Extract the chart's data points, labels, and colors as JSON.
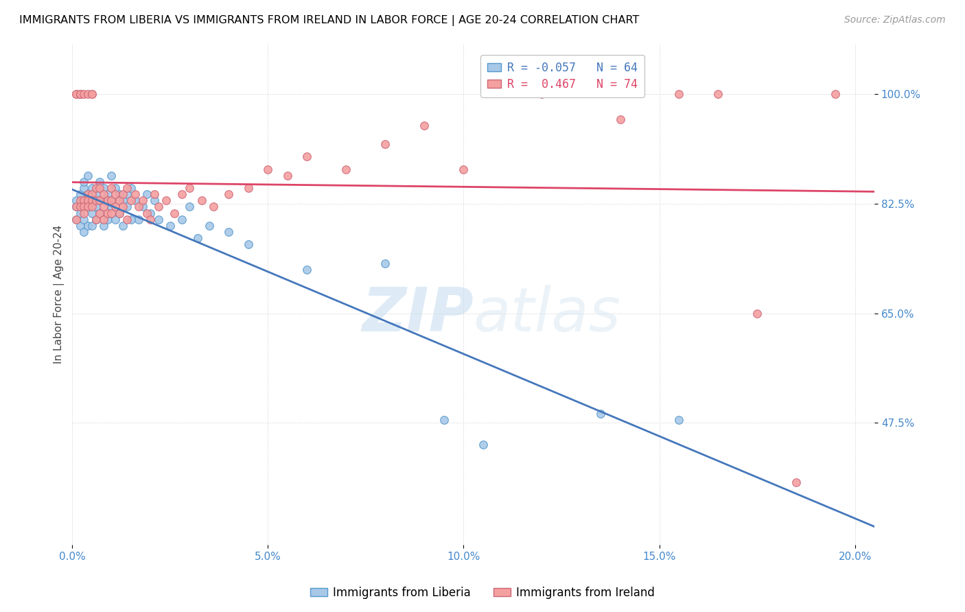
{
  "title": "IMMIGRANTS FROM LIBERIA VS IMMIGRANTS FROM IRELAND IN LABOR FORCE | AGE 20-24 CORRELATION CHART",
  "source": "Source: ZipAtlas.com",
  "xlabel_ticks": [
    "0.0%",
    "5.0%",
    "10.0%",
    "15.0%",
    "20.0%"
  ],
  "xlabel_tick_vals": [
    0.0,
    0.05,
    0.1,
    0.15,
    0.2
  ],
  "ylabel_ticks": [
    "47.5%",
    "65.0%",
    "82.5%",
    "100.0%"
  ],
  "ylabel_tick_vals": [
    0.475,
    0.65,
    0.825,
    1.0
  ],
  "ylabel_label": "In Labor Force | Age 20-24",
  "legend_labels": [
    "Immigrants from Liberia",
    "Immigrants from Ireland"
  ],
  "R_liberia": -0.057,
  "N_liberia": 64,
  "R_ireland": 0.467,
  "N_ireland": 74,
  "blue_color": "#a8c8e8",
  "blue_edge_color": "#5599cc",
  "pink_color": "#f4a0a0",
  "pink_edge_color": "#cc6677",
  "blue_line_color": "#4477bb",
  "pink_line_color": "#dd4466",
  "watermark_color": "#ddeeff",
  "xlim": [
    0.0,
    0.205
  ],
  "ylim": [
    0.28,
    1.08
  ],
  "liberia_x": [
    0.001,
    0.001,
    0.001,
    0.002,
    0.002,
    0.002,
    0.002,
    0.003,
    0.003,
    0.003,
    0.003,
    0.003,
    0.004,
    0.004,
    0.004,
    0.004,
    0.005,
    0.005,
    0.005,
    0.005,
    0.006,
    0.006,
    0.006,
    0.007,
    0.007,
    0.007,
    0.008,
    0.008,
    0.008,
    0.009,
    0.009,
    0.01,
    0.01,
    0.01,
    0.011,
    0.011,
    0.012,
    0.012,
    0.013,
    0.013,
    0.014,
    0.014,
    0.015,
    0.015,
    0.016,
    0.017,
    0.018,
    0.019,
    0.02,
    0.021,
    0.022,
    0.025,
    0.028,
    0.03,
    0.032,
    0.035,
    0.04,
    0.045,
    0.06,
    0.08,
    0.095,
    0.105,
    0.135,
    0.155
  ],
  "liberia_y": [
    0.82,
    0.8,
    0.83,
    0.79,
    0.84,
    0.82,
    0.81,
    0.83,
    0.85,
    0.8,
    0.78,
    0.86,
    0.84,
    0.79,
    0.87,
    0.82,
    0.83,
    0.81,
    0.85,
    0.79,
    0.84,
    0.82,
    0.8,
    0.86,
    0.83,
    0.81,
    0.85,
    0.79,
    0.83,
    0.84,
    0.8,
    0.87,
    0.82,
    0.83,
    0.85,
    0.8,
    0.84,
    0.81,
    0.83,
    0.79,
    0.84,
    0.82,
    0.8,
    0.85,
    0.83,
    0.8,
    0.82,
    0.84,
    0.81,
    0.83,
    0.8,
    0.79,
    0.8,
    0.82,
    0.77,
    0.79,
    0.78,
    0.76,
    0.72,
    0.73,
    0.48,
    0.44,
    0.49,
    0.48
  ],
  "ireland_x": [
    0.001,
    0.001,
    0.001,
    0.001,
    0.002,
    0.002,
    0.002,
    0.002,
    0.002,
    0.003,
    0.003,
    0.003,
    0.003,
    0.004,
    0.004,
    0.004,
    0.004,
    0.005,
    0.005,
    0.005,
    0.005,
    0.005,
    0.006,
    0.006,
    0.006,
    0.007,
    0.007,
    0.007,
    0.008,
    0.008,
    0.008,
    0.009,
    0.009,
    0.01,
    0.01,
    0.01,
    0.011,
    0.011,
    0.012,
    0.012,
    0.013,
    0.013,
    0.014,
    0.014,
    0.015,
    0.016,
    0.017,
    0.018,
    0.019,
    0.02,
    0.021,
    0.022,
    0.024,
    0.026,
    0.028,
    0.03,
    0.033,
    0.036,
    0.04,
    0.045,
    0.05,
    0.055,
    0.06,
    0.07,
    0.08,
    0.09,
    0.1,
    0.12,
    0.14,
    0.155,
    0.165,
    0.175,
    0.185,
    0.195
  ],
  "ireland_y": [
    0.82,
    0.8,
    1.0,
    1.0,
    1.0,
    1.0,
    0.83,
    0.82,
    1.0,
    1.0,
    0.83,
    0.82,
    0.81,
    1.0,
    0.84,
    0.83,
    0.82,
    1.0,
    1.0,
    0.84,
    0.83,
    0.82,
    0.85,
    0.83,
    0.8,
    0.85,
    0.83,
    0.81,
    0.84,
    0.82,
    0.8,
    0.83,
    0.81,
    0.85,
    0.83,
    0.81,
    0.84,
    0.82,
    0.83,
    0.81,
    0.84,
    0.82,
    0.85,
    0.8,
    0.83,
    0.84,
    0.82,
    0.83,
    0.81,
    0.8,
    0.84,
    0.82,
    0.83,
    0.81,
    0.84,
    0.85,
    0.83,
    0.82,
    0.84,
    0.85,
    0.88,
    0.87,
    0.9,
    0.88,
    0.92,
    0.95,
    0.88,
    1.0,
    0.96,
    1.0,
    1.0,
    0.65,
    0.38,
    1.0
  ]
}
